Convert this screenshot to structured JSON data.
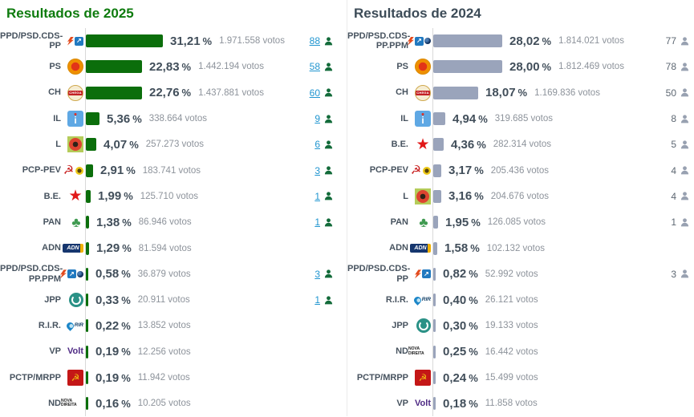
{
  "colors": {
    "title_2025": "#0e7b0e",
    "title_2024": "#3c4b57",
    "bar_2025": "#0b6e0b",
    "bar_2024": "#9aa4bb",
    "seats_link": "#2095d0",
    "percent_text": "#414e5a",
    "votes_text": "#8d939b"
  },
  "icon_glyphs": {
    "cds-arrow-icon": "↗",
    "pcp-hammer-sickle-icon": "☭",
    "be-star-icon": "★",
    "pan-tree-icon": "♣",
    "il-square-icon": "i",
    "adn-badge-icon": "ADN",
    "chega-badge-icon": "CHEGA",
    "rir-logo-icon": "RIR",
    "volt-wordmark-icon": "Volt",
    "nd-logo-icon": "NOVA DIREITA",
    "pctp-badge-icon": "☭"
  },
  "chart_data": [
    {
      "type": "bar",
      "orientation": "horizontal",
      "title": "Resultados de 2025",
      "title_color": "#0e7b0e",
      "bar_color": "#0b6e0b",
      "seats_are_links": true,
      "seat_icon_color": "#136b3a",
      "unit_percent": "%",
      "unit_votes": "votos",
      "xlim": [
        0,
        32
      ],
      "series": [
        {
          "party": "PPD/PSD.CDS-PP",
          "icons": [
            "psd-arrow-icon",
            "cds-arrow-icon"
          ],
          "percent": 31.21,
          "percent_label": "31,21",
          "votes_label": "1.971.558",
          "seats": "88"
        },
        {
          "party": "PS",
          "icons": [
            "ps-rose-icon"
          ],
          "percent": 22.83,
          "percent_label": "22,83",
          "votes_label": "1.442.194",
          "seats": "58"
        },
        {
          "party": "CH",
          "icons": [
            "chega-badge-icon"
          ],
          "percent": 22.76,
          "percent_label": "22,76",
          "votes_label": "1.437.881",
          "seats": "60"
        },
        {
          "party": "IL",
          "icons": [
            "il-square-icon"
          ],
          "percent": 5.36,
          "percent_label": "5,36",
          "votes_label": "338.664",
          "seats": "9"
        },
        {
          "party": "L",
          "icons": [
            "livre-poppy-icon"
          ],
          "percent": 4.07,
          "percent_label": "4,07",
          "votes_label": "257.273",
          "seats": "6"
        },
        {
          "party": "PCP-PEV",
          "icons": [
            "pcp-hammer-sickle-icon",
            "pev-sunflower-icon"
          ],
          "percent": 2.91,
          "percent_label": "2,91",
          "votes_label": "183.741",
          "seats": "3"
        },
        {
          "party": "B.E.",
          "icons": [
            "be-star-icon"
          ],
          "percent": 1.99,
          "percent_label": "1,99",
          "votes_label": "125.710",
          "seats": "1"
        },
        {
          "party": "PAN",
          "icons": [
            "pan-tree-icon"
          ],
          "percent": 1.38,
          "percent_label": "1,38",
          "votes_label": "86.946",
          "seats": "1"
        },
        {
          "party": "ADN",
          "icons": [
            "adn-badge-icon"
          ],
          "percent": 1.29,
          "percent_label": "1,29",
          "votes_label": "81.594",
          "seats": null
        },
        {
          "party": "PPD/PSD.CDS-PP.PPM",
          "icons": [
            "psd-arrow-icon",
            "cds-arrow-icon",
            "ppm-circle-icon"
          ],
          "percent": 0.58,
          "percent_label": "0,58",
          "votes_label": "36.879",
          "seats": "3"
        },
        {
          "party": "JPP",
          "icons": [
            "jpp-circle-icon"
          ],
          "percent": 0.33,
          "percent_label": "0,33",
          "votes_label": "20.911",
          "seats": "1"
        },
        {
          "party": "R.I.R.",
          "icons": [
            "rir-logo-icon"
          ],
          "percent": 0.22,
          "percent_label": "0,22",
          "votes_label": "13.852",
          "seats": null
        },
        {
          "party": "VP",
          "icons": [
            "volt-wordmark-icon"
          ],
          "percent": 0.19,
          "percent_label": "0,19",
          "votes_label": "12.256",
          "seats": null
        },
        {
          "party": "PCTP/MRPP",
          "icons": [
            "pctp-badge-icon"
          ],
          "percent": 0.19,
          "percent_label": "0,19",
          "votes_label": "11.942",
          "seats": null
        },
        {
          "party": "ND",
          "icons": [
            "nd-logo-icon"
          ],
          "percent": 0.16,
          "percent_label": "0,16",
          "votes_label": "10.205",
          "seats": null
        }
      ]
    },
    {
      "type": "bar",
      "orientation": "horizontal",
      "title": "Resultados de 2024",
      "title_color": "#3c4b57",
      "bar_color": "#9aa4bb",
      "seats_are_links": false,
      "seat_icon_color": "#98a1b1",
      "unit_percent": "%",
      "unit_votes": "votos",
      "xlim": [
        0,
        29
      ],
      "series": [
        {
          "party": "PPD/PSD.CDS-PP.PPM",
          "icons": [
            "psd-arrow-icon",
            "cds-arrow-icon",
            "ppm-circle-icon"
          ],
          "percent": 28.02,
          "percent_label": "28,02",
          "votes_label": "1.814.021",
          "seats": "77"
        },
        {
          "party": "PS",
          "icons": [
            "ps-rose-icon"
          ],
          "percent": 28.0,
          "percent_label": "28,00",
          "votes_label": "1.812.469",
          "seats": "78"
        },
        {
          "party": "CH",
          "icons": [
            "chega-badge-icon"
          ],
          "percent": 18.07,
          "percent_label": "18,07",
          "votes_label": "1.169.836",
          "seats": "50"
        },
        {
          "party": "IL",
          "icons": [
            "il-square-icon"
          ],
          "percent": 4.94,
          "percent_label": "4,94",
          "votes_label": "319.685",
          "seats": "8"
        },
        {
          "party": "B.E.",
          "icons": [
            "be-star-icon"
          ],
          "percent": 4.36,
          "percent_label": "4,36",
          "votes_label": "282.314",
          "seats": "5"
        },
        {
          "party": "PCP-PEV",
          "icons": [
            "pcp-hammer-sickle-icon",
            "pev-sunflower-icon"
          ],
          "percent": 3.17,
          "percent_label": "3,17",
          "votes_label": "205.436",
          "seats": "4"
        },
        {
          "party": "L",
          "icons": [
            "livre-poppy-icon"
          ],
          "percent": 3.16,
          "percent_label": "3,16",
          "votes_label": "204.676",
          "seats": "4"
        },
        {
          "party": "PAN",
          "icons": [
            "pan-tree-icon"
          ],
          "percent": 1.95,
          "percent_label": "1,95",
          "votes_label": "126.085",
          "seats": "1"
        },
        {
          "party": "ADN",
          "icons": [
            "adn-badge-icon"
          ],
          "percent": 1.58,
          "percent_label": "1,58",
          "votes_label": "102.132",
          "seats": null
        },
        {
          "party": "PPD/PSD.CDS-PP",
          "icons": [
            "psd-arrow-icon",
            "cds-arrow-icon"
          ],
          "percent": 0.82,
          "percent_label": "0,82",
          "votes_label": "52.992",
          "seats": "3"
        },
        {
          "party": "R.I.R.",
          "icons": [
            "rir-logo-icon"
          ],
          "percent": 0.4,
          "percent_label": "0,40",
          "votes_label": "26.121",
          "seats": null
        },
        {
          "party": "JPP",
          "icons": [
            "jpp-circle-icon"
          ],
          "percent": 0.3,
          "percent_label": "0,30",
          "votes_label": "19.133",
          "seats": null
        },
        {
          "party": "ND",
          "icons": [
            "nd-logo-icon"
          ],
          "percent": 0.25,
          "percent_label": "0,25",
          "votes_label": "16.442",
          "seats": null
        },
        {
          "party": "PCTP/MRPP",
          "icons": [
            "pctp-badge-icon"
          ],
          "percent": 0.24,
          "percent_label": "0,24",
          "votes_label": "15.499",
          "seats": null
        },
        {
          "party": "VP",
          "icons": [
            "volt-wordmark-icon"
          ],
          "percent": 0.18,
          "percent_label": "0,18",
          "votes_label": "11.858",
          "seats": null
        }
      ]
    }
  ]
}
